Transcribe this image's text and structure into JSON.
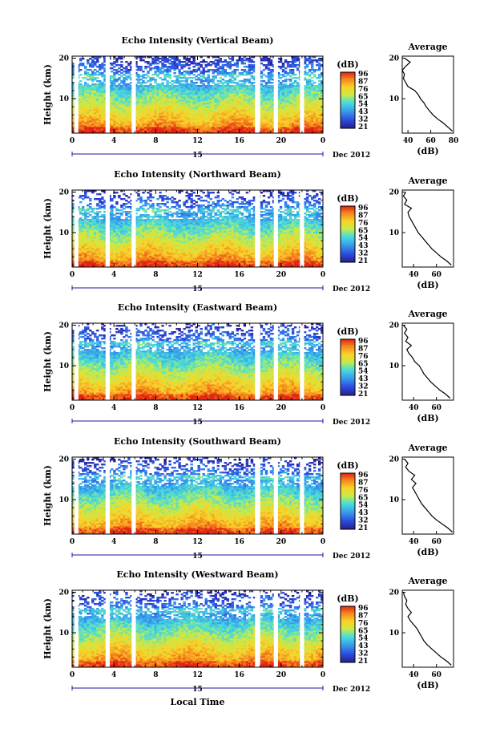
{
  "figure": {
    "x_axis_title": "Local Time",
    "date_label": "Dec 2012",
    "day_label": "15",
    "height_label": "Height (km)",
    "avg_title": "Average",
    "avg_xlabel": "(dB)",
    "colorbar_unit": "(dB)"
  },
  "chart_data": [
    {
      "type": "heatmap",
      "title": "Echo Intensity (Vertical Beam)",
      "xlabel": "Local Time",
      "ylabel": "Height (km)",
      "xlim": [
        0,
        24
      ],
      "ylim": [
        1.5,
        20.5
      ],
      "xticks": [
        "0",
        "4",
        "8",
        "12",
        "16",
        "20",
        "0"
      ],
      "yticks": [
        "10",
        "20"
      ],
      "colorbar": {
        "label": "(dB)",
        "ticks": [
          "96",
          "87",
          "76",
          "65",
          "54",
          "43",
          "32",
          "21"
        ]
      },
      "gaps_hours": [
        [
          0.2,
          0.6
        ],
        [
          3.2,
          3.6
        ],
        [
          5.7,
          6.1
        ],
        [
          17.5,
          18.0
        ],
        [
          19.3,
          19.7
        ],
        [
          21.8,
          22.2
        ]
      ],
      "profile": {
        "title": "Average",
        "xlabel": "(dB)",
        "xlim": [
          35,
          80
        ],
        "xticks": [
          "40",
          "60",
          "80"
        ],
        "yticks": [
          "10",
          "20"
        ],
        "height": [
          2,
          3,
          4,
          5,
          6,
          7,
          8,
          9,
          10,
          11,
          12,
          13,
          14,
          15,
          16,
          17,
          18,
          19,
          20
        ],
        "value": [
          79,
          75,
          71,
          66,
          62,
          59,
          56,
          54,
          51,
          49,
          46,
          40,
          38,
          36,
          37,
          35,
          38,
          42,
          37
        ]
      }
    },
    {
      "type": "heatmap",
      "title": "Echo Intensity (Northward Beam)",
      "xlabel": "Local Time",
      "ylabel": "Height (km)",
      "xlim": [
        0,
        24
      ],
      "ylim": [
        1.5,
        20.5
      ],
      "xticks": [
        "0",
        "4",
        "8",
        "12",
        "16",
        "20",
        "0"
      ],
      "yticks": [
        "10",
        "20"
      ],
      "colorbar": {
        "label": "(dB)",
        "ticks": [
          "96",
          "87",
          "76",
          "65",
          "54",
          "43",
          "32",
          "21"
        ]
      },
      "gaps_hours": [
        [
          0.2,
          0.6
        ],
        [
          3.2,
          3.6
        ],
        [
          5.7,
          6.1
        ],
        [
          17.5,
          18.0
        ],
        [
          19.3,
          19.7
        ],
        [
          21.8,
          22.2
        ]
      ],
      "profile": {
        "title": "Average",
        "xlabel": "(dB)",
        "xlim": [
          30,
          75
        ],
        "xticks": [
          "40",
          "60"
        ],
        "yticks": [
          "10",
          "20"
        ],
        "height": [
          2,
          3,
          4,
          5,
          6,
          7,
          8,
          9,
          10,
          11,
          12,
          13,
          14,
          15,
          16,
          17,
          18,
          19,
          20
        ],
        "value": [
          73,
          69,
          64,
          60,
          56,
          53,
          50,
          47,
          44,
          42,
          40,
          38,
          36,
          35,
          38,
          32,
          34,
          31,
          33
        ]
      }
    },
    {
      "type": "heatmap",
      "title": "Echo Intensity (Eastward Beam)",
      "xlabel": "Local Time",
      "ylabel": "Height (km)",
      "xlim": [
        0,
        24
      ],
      "ylim": [
        1.5,
        20.5
      ],
      "xticks": [
        "0",
        "4",
        "8",
        "12",
        "16",
        "20",
        "0"
      ],
      "yticks": [
        "10",
        "20"
      ],
      "colorbar": {
        "label": "(dB)",
        "ticks": [
          "96",
          "87",
          "76",
          "65",
          "54",
          "43",
          "32",
          "21"
        ]
      },
      "gaps_hours": [
        [
          0.2,
          0.6
        ],
        [
          3.2,
          3.6
        ],
        [
          5.7,
          6.1
        ],
        [
          17.5,
          18.0
        ],
        [
          19.3,
          19.7
        ],
        [
          21.8,
          22.2
        ]
      ],
      "profile": {
        "title": "Average",
        "xlabel": "(dB)",
        "xlim": [
          30,
          75
        ],
        "xticks": [
          "40",
          "60"
        ],
        "yticks": [
          "10",
          "20"
        ],
        "height": [
          2,
          3,
          4,
          5,
          6,
          7,
          8,
          9,
          10,
          11,
          12,
          13,
          14,
          15,
          16,
          17,
          18,
          19,
          20
        ],
        "value": [
          72,
          68,
          63,
          59,
          55,
          52,
          49,
          47,
          45,
          41,
          39,
          36,
          34,
          38,
          33,
          35,
          32,
          34,
          31
        ]
      }
    },
    {
      "type": "heatmap",
      "title": "Echo Intensity (Southward Beam)",
      "xlabel": "Local Time",
      "ylabel": "Height (km)",
      "xlim": [
        0,
        24
      ],
      "ylim": [
        1.5,
        20.5
      ],
      "xticks": [
        "0",
        "4",
        "8",
        "12",
        "16",
        "20",
        "0"
      ],
      "yticks": [
        "10",
        "20"
      ],
      "colorbar": {
        "label": "(dB)",
        "ticks": [
          "96",
          "87",
          "76",
          "65",
          "54",
          "43",
          "32",
          "21"
        ]
      },
      "gaps_hours": [
        [
          0.2,
          0.6
        ],
        [
          3.2,
          3.6
        ],
        [
          5.7,
          6.1
        ],
        [
          17.5,
          18.0
        ],
        [
          19.3,
          19.7
        ],
        [
          21.8,
          22.2
        ]
      ],
      "profile": {
        "title": "Average",
        "xlabel": "(dB)",
        "xlim": [
          30,
          75
        ],
        "xticks": [
          "40",
          "60"
        ],
        "yticks": [
          "10",
          "20"
        ],
        "height": [
          2,
          3,
          4,
          5,
          6,
          7,
          8,
          9,
          10,
          11,
          12,
          13,
          14,
          15,
          16,
          17,
          18,
          19,
          20
        ],
        "value": [
          74,
          70,
          65,
          60,
          56,
          53,
          50,
          47,
          45,
          43,
          41,
          39,
          42,
          38,
          41,
          36,
          33,
          35,
          32
        ]
      }
    },
    {
      "type": "heatmap",
      "title": "Echo Intensity (Westward Beam)",
      "xlabel": "Local Time",
      "ylabel": "Height (km)",
      "xlim": [
        0,
        24
      ],
      "ylim": [
        1.5,
        20.5
      ],
      "xticks": [
        "0",
        "4",
        "8",
        "12",
        "16",
        "20",
        "0"
      ],
      "yticks": [
        "10",
        "20"
      ],
      "colorbar": {
        "label": "(dB)",
        "ticks": [
          "96",
          "87",
          "76",
          "65",
          "54",
          "43",
          "32",
          "21"
        ]
      },
      "gaps_hours": [
        [
          0.2,
          0.6
        ],
        [
          3.2,
          3.6
        ],
        [
          5.7,
          6.1
        ],
        [
          17.5,
          18.0
        ],
        [
          19.3,
          19.7
        ],
        [
          21.8,
          22.2
        ]
      ],
      "profile": {
        "title": "Average",
        "xlabel": "(dB)",
        "xlim": [
          30,
          75
        ],
        "xticks": [
          "40",
          "60"
        ],
        "yticks": [
          "10",
          "20"
        ],
        "height": [
          2,
          3,
          4,
          5,
          6,
          7,
          8,
          9,
          10,
          11,
          12,
          13,
          14,
          15,
          16,
          17,
          18,
          19,
          20
        ],
        "value": [
          73,
          69,
          64,
          60,
          56,
          52,
          49,
          47,
          45,
          43,
          40,
          37,
          35,
          38,
          35,
          33,
          34,
          32,
          31
        ]
      }
    }
  ]
}
